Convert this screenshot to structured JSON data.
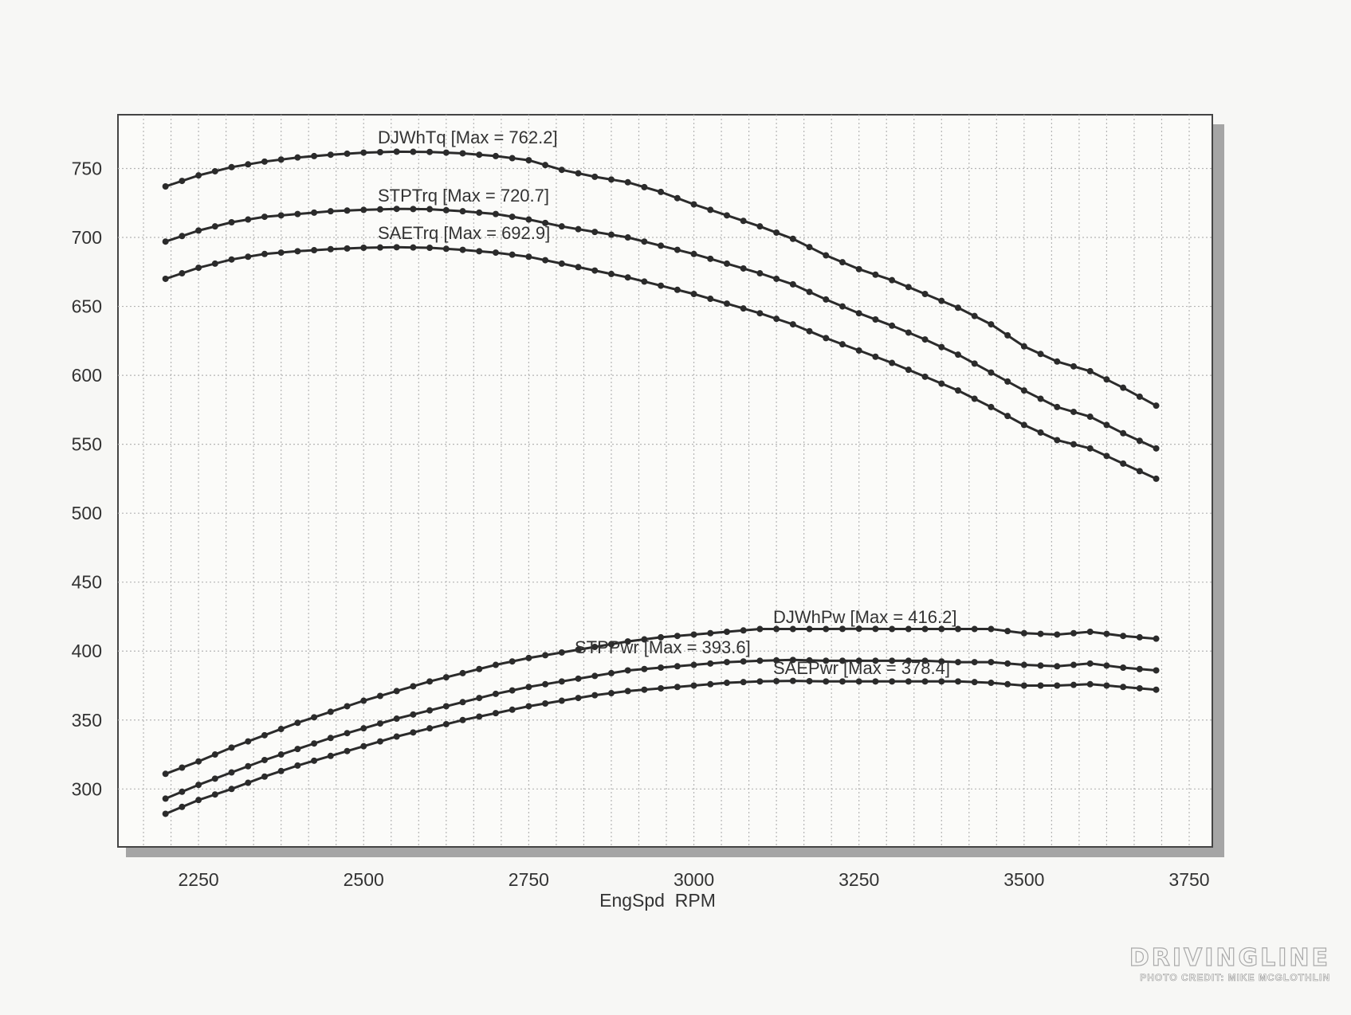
{
  "chart_data": {
    "type": "line",
    "title": "",
    "xlabel": "EngSpd  RPM",
    "ylabel": "",
    "xlim": [
      2128,
      3785
    ],
    "ylim": [
      258,
      789
    ],
    "x_ticks": [
      2250,
      2500,
      2750,
      3000,
      3250,
      3500,
      3750
    ],
    "y_ticks": [
      300,
      350,
      400,
      450,
      500,
      550,
      600,
      650,
      700,
      750
    ],
    "grid": true,
    "markers": true,
    "x": [
      2200,
      2250,
      2300,
      2350,
      2400,
      2450,
      2500,
      2550,
      2600,
      2650,
      2700,
      2750,
      2800,
      2850,
      2900,
      2950,
      3000,
      3050,
      3100,
      3150,
      3200,
      3250,
      3300,
      3350,
      3400,
      3450,
      3500,
      3550,
      3600,
      3650,
      3700
    ],
    "series": [
      {
        "name": "DJWhTq",
        "label": "DJWhTq [Max = 762.2]",
        "values": [
          737,
          745,
          751,
          755,
          758,
          760,
          761.5,
          762.2,
          762,
          761,
          759,
          756,
          749,
          744,
          740,
          733,
          724,
          716,
          708,
          699,
          687,
          677,
          669,
          659,
          649,
          637,
          621,
          610,
          603,
          591,
          578
        ]
      },
      {
        "name": "STPTrq",
        "label": "STPTrq [Max = 720.7]",
        "values": [
          697,
          705,
          711,
          715,
          717,
          719,
          720,
          720.7,
          720.5,
          719,
          717,
          713,
          708,
          704,
          700,
          694,
          688,
          681,
          674,
          666,
          655,
          645,
          636,
          626,
          615,
          602,
          589,
          577,
          570,
          558,
          547
        ]
      },
      {
        "name": "SAETrq",
        "label": "SAETrq [Max = 692.9]",
        "values": [
          670,
          678,
          684,
          688,
          690,
          691.5,
          692.5,
          692.9,
          692.5,
          691,
          689,
          686,
          681,
          676,
          671,
          665,
          659,
          652,
          645,
          637,
          627,
          618,
          609,
          599,
          589,
          577,
          564,
          553,
          547,
          536,
          525
        ]
      },
      {
        "name": "DJWhPw",
        "label": "DJWhPw [Max = 416.2]",
        "values": [
          311,
          320,
          330,
          339,
          348,
          356,
          364,
          371,
          378,
          384,
          390,
          395,
          399,
          403,
          407,
          410,
          412,
          414,
          416,
          416,
          416,
          416.2,
          416,
          416,
          416,
          416,
          413,
          412,
          414,
          411,
          409
        ]
      },
      {
        "name": "STPPwr",
        "label": "STPPwr [Max = 393.6]",
        "values": [
          293,
          303,
          312,
          321,
          329,
          337,
          344,
          351,
          357,
          363,
          369,
          374,
          378,
          382,
          386,
          388,
          390,
          392,
          393,
          393.6,
          393,
          393,
          393,
          393,
          392,
          392,
          390,
          389,
          391,
          388,
          386
        ]
      },
      {
        "name": "SAEPwr",
        "label": "SAEPwr [Max = 378.4]",
        "values": [
          282,
          292,
          300,
          309,
          317,
          324,
          331,
          338,
          344,
          350,
          355,
          360,
          364,
          368,
          371,
          373,
          375,
          377,
          378,
          378.4,
          378,
          378,
          378,
          378,
          378,
          377,
          375,
          375,
          376,
          374,
          372
        ]
      }
    ],
    "colors": {
      "line": "#2b2b2b",
      "grid": "#b5b5b5",
      "frame": "#444444",
      "shadow": "#8a8a8a"
    }
  },
  "watermark": {
    "logo": "DRIVINGLINE",
    "credit": "PHOTO CREDIT: MIKE MCGLOTHLIN"
  }
}
